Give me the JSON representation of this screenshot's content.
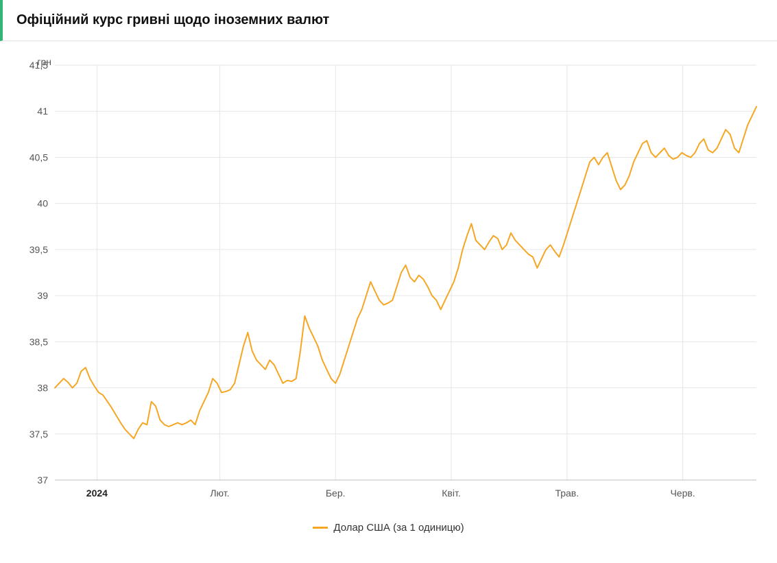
{
  "title": "Офіційний курс гривні щодо іноземних валют",
  "chart": {
    "type": "line",
    "y_axis_label": "грн",
    "background_color": "#ffffff",
    "grid_color": "#e6e6e6",
    "axis_color": "#bcbcbc",
    "text_color": "#555555",
    "title_fontsize": 20,
    "label_fontsize": 14,
    "line_width": 2,
    "ylim": [
      37,
      41.5
    ],
    "ytick_step": 0.5,
    "yticks": [
      "37",
      "37,5",
      "38",
      "38,5",
      "39",
      "39,5",
      "40",
      "40,5",
      "41",
      "41,5"
    ],
    "xticks": [
      {
        "label": "2024",
        "pos": 0.06,
        "bold": true
      },
      {
        "label": "Лют.",
        "pos": 0.235,
        "bold": false
      },
      {
        "label": "Бер.",
        "pos": 0.4,
        "bold": false
      },
      {
        "label": "Квіт.",
        "pos": 0.565,
        "bold": false
      },
      {
        "label": "Трав.",
        "pos": 0.73,
        "bold": false
      },
      {
        "label": "Черв.",
        "pos": 0.895,
        "bold": false
      }
    ],
    "series": [
      {
        "name": "Долар США (за 1 одиницю)",
        "color": "#f5a623",
        "values": [
          38.0,
          38.05,
          38.1,
          38.06,
          38.0,
          38.05,
          38.18,
          38.22,
          38.1,
          38.02,
          37.95,
          37.92,
          37.85,
          37.78,
          37.7,
          37.62,
          37.55,
          37.5,
          37.45,
          37.55,
          37.62,
          37.6,
          37.85,
          37.8,
          37.65,
          37.6,
          37.58,
          37.6,
          37.62,
          37.6,
          37.62,
          37.65,
          37.6,
          37.75,
          37.85,
          37.95,
          38.1,
          38.05,
          37.95,
          37.96,
          37.98,
          38.05,
          38.25,
          38.45,
          38.6,
          38.4,
          38.3,
          38.25,
          38.2,
          38.3,
          38.25,
          38.15,
          38.05,
          38.08,
          38.07,
          38.1,
          38.4,
          38.78,
          38.65,
          38.55,
          38.45,
          38.3,
          38.2,
          38.1,
          38.05,
          38.15,
          38.3,
          38.45,
          38.6,
          38.75,
          38.85,
          39.0,
          39.15,
          39.05,
          38.95,
          38.9,
          38.92,
          38.95,
          39.1,
          39.25,
          39.33,
          39.2,
          39.15,
          39.22,
          39.18,
          39.1,
          39.0,
          38.95,
          38.85,
          38.95,
          39.05,
          39.15,
          39.3,
          39.5,
          39.65,
          39.78,
          39.6,
          39.55,
          39.5,
          39.58,
          39.65,
          39.62,
          39.5,
          39.55,
          39.68,
          39.6,
          39.55,
          39.5,
          39.45,
          39.42,
          39.3,
          39.4,
          39.5,
          39.55,
          39.48,
          39.42,
          39.55,
          39.7,
          39.85,
          40.0,
          40.15,
          40.3,
          40.45,
          40.5,
          40.42,
          40.5,
          40.55,
          40.4,
          40.25,
          40.15,
          40.2,
          40.3,
          40.45,
          40.55,
          40.65,
          40.68,
          40.55,
          40.5,
          40.55,
          40.6,
          40.52,
          40.48,
          40.5,
          40.55,
          40.52,
          40.5,
          40.55,
          40.65,
          40.7,
          40.58,
          40.55,
          40.6,
          40.7,
          40.8,
          40.75,
          40.6,
          40.55,
          40.7,
          40.85,
          40.95,
          41.05
        ]
      }
    ]
  },
  "legend": {
    "items": [
      {
        "label": "Долар США (за 1 одиницю)",
        "color": "#f5a623"
      }
    ]
  }
}
